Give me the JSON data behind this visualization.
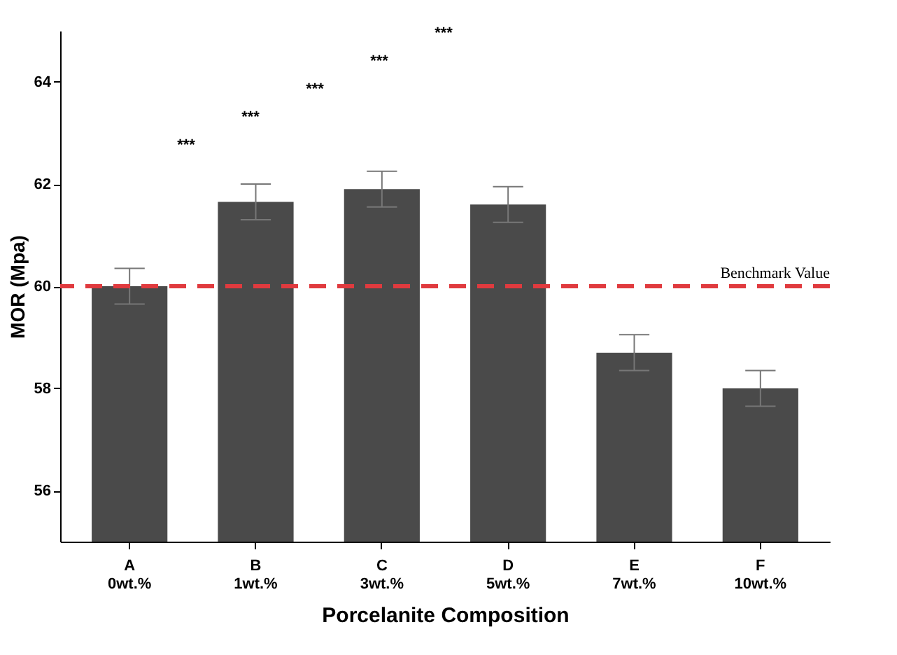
{
  "chart_data": {
    "type": "bar",
    "xlabel": "Porcelanite Composition",
    "ylabel": "MOR (Mpa)",
    "categories": [
      "A\n0wt.%",
      "B\n1wt.%",
      "C\n3wt.%",
      "D\n5wt.%",
      "E\n7wt.%",
      "F\n10wt.%"
    ],
    "series": [
      {
        "color": "#4a4a4a",
        "values": [
          60.0,
          61.65,
          61.9,
          61.6,
          58.7,
          58.0
        ],
        "errors": [
          0.35,
          0.35,
          0.35,
          0.35,
          0.35,
          0.35
        ]
      }
    ],
    "ylim": [
      55,
      65
    ],
    "yticks": [
      56,
      58,
      60,
      62,
      64
    ],
    "grid": false,
    "ref_lines": [
      {
        "axis": "y",
        "value": 60,
        "label": "Benchmark Value",
        "color": "#e03a3e",
        "line_style": "dashed"
      }
    ],
    "annotations": [
      "***",
      "***",
      "***",
      "***",
      "***"
    ]
  }
}
